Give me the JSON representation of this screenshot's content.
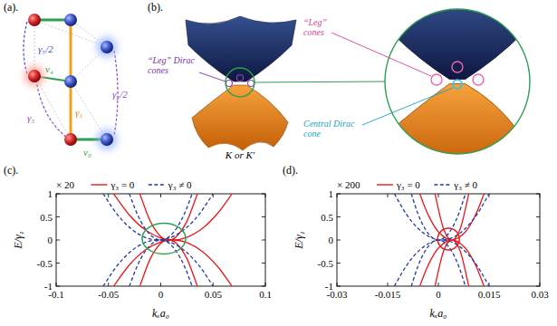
{
  "diagram_a": {
    "panel_label": "(a).",
    "labels": {
      "g5": "γ₅/2",
      "g3": "γ₃",
      "g2": "γ₂/2",
      "g1": "γ₁",
      "v4": "v₄",
      "v0": "v₀"
    }
  },
  "diagram_b": {
    "panel_label": "(b).",
    "leg_label": "“Leg” Dirac cones",
    "valley_label": "K or K′",
    "zoom_leg_label": "“Leg” cones",
    "zoom_central_label": "Central Dirac cone"
  },
  "chart_data": [
    {
      "type": "line",
      "panel_label": "(c).",
      "annotation": "× 20",
      "x_label": "kₓa₀",
      "y_label": "E/γ₁",
      "xlim": [
        -0.1,
        0.1
      ],
      "xticks": [
        -0.1,
        -0.05,
        0,
        0.05,
        0.1
      ],
      "ylim": [
        -1,
        1
      ],
      "yticks": [
        -1,
        -0.5,
        0,
        0.5,
        1
      ],
      "legend": "top",
      "series": [
        {
          "name": "γ₃ = 0",
          "color": "#e41a1c",
          "line_style": "solid",
          "x": [
            -0.045,
            -0.03,
            -0.015,
            0,
            0.0115,
            0.025,
            0.04,
            0.055,
            0.068,
            null,
            -0.045,
            -0.03,
            -0.015,
            0,
            0.0115,
            0.025,
            0.04,
            0.055,
            0.068,
            null,
            -0.02,
            -0.01,
            0,
            0.0075,
            0.015,
            0.025,
            0.035,
            null,
            -0.02,
            -0.01,
            0,
            0.0075,
            0.015,
            0.025,
            0.035
          ],
          "values": [
            1,
            0.54,
            0.22,
            0.041,
            0,
            0.057,
            0.254,
            0.593,
            1,
            null,
            -1,
            -0.54,
            -0.22,
            -0.041,
            0,
            -0.057,
            -0.254,
            -0.593,
            -1,
            null,
            1,
            0.405,
            0.074,
            0,
            0.074,
            0.405,
            1,
            null,
            -1,
            -0.405,
            -0.074,
            0,
            -0.074,
            -0.405,
            -1
          ]
        },
        {
          "name": "γ₃ ≠ 0",
          "color": "#1f3a9e",
          "line_style": "dashed",
          "x": [
            -0.055,
            -0.0419,
            -0.0288,
            -0.0156,
            -0.0025,
            0.0106,
            0.0238,
            0.0369,
            0.05,
            null,
            -0.055,
            -0.0419,
            -0.0288,
            -0.0156,
            -0.0025,
            0.0106,
            0.0238,
            0.0369,
            0.05,
            null,
            -0.03,
            -0.0225,
            -0.015,
            -0.0075,
            0,
            0.0075,
            0.015,
            0.0225,
            0.03,
            null,
            -0.03,
            -0.0225,
            -0.015,
            -0.0075,
            0,
            0.0075,
            0.015,
            0.0225,
            0.03
          ],
          "values": [
            1,
            0.5625,
            0.25,
            0.0625,
            0,
            0.0625,
            0.25,
            0.5625,
            1,
            null,
            -1,
            -0.5625,
            -0.25,
            -0.0625,
            0,
            -0.0625,
            -0.25,
            -0.5625,
            -1,
            null,
            1,
            0.5625,
            0.25,
            0.0625,
            0,
            0.0625,
            0.25,
            0.5625,
            1,
            null,
            -1,
            -0.5625,
            -0.25,
            -0.0625,
            0,
            -0.0625,
            -0.25,
            -0.5625,
            -1
          ]
        }
      ]
    },
    {
      "type": "line",
      "panel_label": "(d).",
      "annotation": "× 200",
      "x_label": "kₓa₀",
      "y_label": "E/γ₁",
      "xlim": [
        -0.03,
        0.03
      ],
      "xticks": [
        -0.03,
        -0.015,
        0,
        0.015,
        0.03
      ],
      "ylim": [
        -1,
        1
      ],
      "yticks": [
        -1,
        -0.5,
        0,
        0.5,
        1
      ],
      "legend": "top",
      "series": [
        {
          "name": "γ₃ = 0",
          "color": "#e41a1c",
          "line_style": "solid",
          "x": [
            -0.0055,
            -0.003,
            0,
            0.004,
            0.008,
            0.011,
            0.0135,
            null,
            -0.0055,
            -0.003,
            0,
            0.004,
            0.008,
            0.011,
            0.0135,
            null,
            -0.001,
            0.0015,
            0.004,
            0.0065,
            0.009,
            null,
            -0.001,
            0.0015,
            0.004,
            0.0065,
            0.009
          ],
          "values": [
            1,
            0.543,
            0.177,
            0,
            0.177,
            0.543,
            1,
            null,
            -1,
            -0.543,
            -0.177,
            0,
            -0.177,
            -0.543,
            -1,
            null,
            1,
            0.25,
            0,
            0.25,
            1,
            null,
            -1,
            -0.25,
            0,
            -0.25,
            -1
          ]
        },
        {
          "name": "γ₃ ≠ 0",
          "color": "#1f3a9e",
          "line_style": "dashed",
          "x": [
            -0.013,
            -0.0095,
            -0.006,
            -0.0025,
            0.001,
            0.0045,
            0.008,
            0.0115,
            0.015,
            null,
            -0.013,
            -0.0095,
            -0.006,
            -0.0025,
            0.001,
            0.0045,
            0.008,
            0.0115,
            0.015,
            null,
            -0.008,
            -0.006,
            -0.004,
            -0.002,
            0,
            0.002,
            0.004,
            0.006,
            0.008,
            null,
            -0.008,
            -0.006,
            -0.004,
            -0.002,
            0,
            0.002,
            0.004,
            0.006,
            0.008
          ],
          "values": [
            1,
            0.5625,
            0.25,
            0.0625,
            0,
            0.0625,
            0.25,
            0.5625,
            1,
            null,
            -1,
            -0.5625,
            -0.25,
            -0.0625,
            0,
            -0.0625,
            -0.25,
            -0.5625,
            -1,
            null,
            1,
            0.5625,
            0.25,
            0.0625,
            0,
            0.0625,
            0.25,
            0.5625,
            1,
            null,
            -1,
            -0.5625,
            -0.25,
            -0.0625,
            0,
            -0.0625,
            -0.25,
            -0.5625,
            -1
          ]
        }
      ]
    }
  ]
}
